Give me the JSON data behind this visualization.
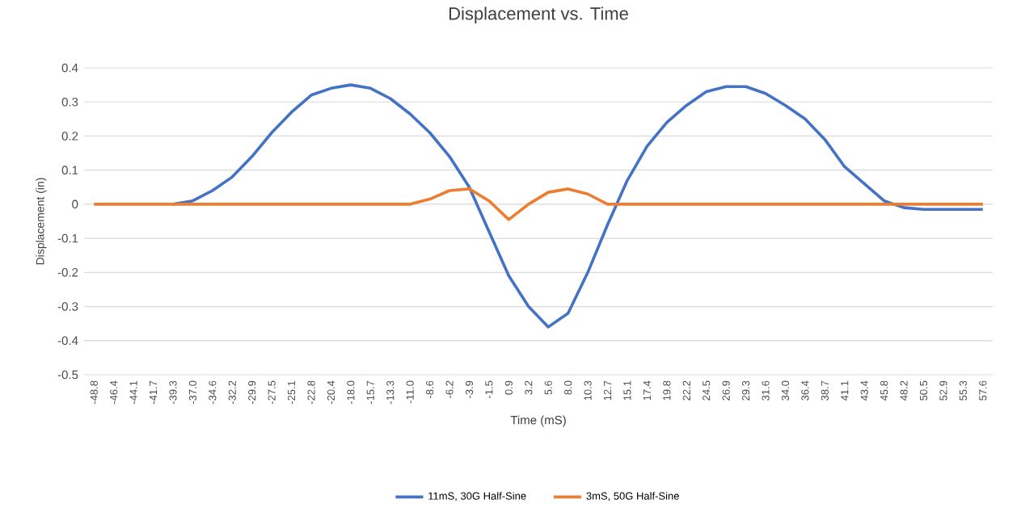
{
  "chart_data": {
    "type": "line",
    "title": "Displacement vs. Time",
    "xlabel": "Time (mS)",
    "ylabel": "Displacement (in)",
    "categories": [
      "-48.8",
      "-46.4",
      "-44.1",
      "-41.7",
      "-39.3",
      "-37.0",
      "-34.6",
      "-32.2",
      "-29.9",
      "-27.5",
      "-25.1",
      "-22.8",
      "-20.4",
      "-18.0",
      "-15.7",
      "-13.3",
      "-11.0",
      "-8.6",
      "-6.2",
      "-3.9",
      "-1.5",
      "0.9",
      "3.2",
      "5.6",
      "8.0",
      "10.3",
      "12.7",
      "15.1",
      "17.4",
      "19.8",
      "22.2",
      "24.5",
      "26.9",
      "29.3",
      "31.6",
      "34.0",
      "36.4",
      "38.7",
      "41.1",
      "43.4",
      "45.8",
      "48.2",
      "50.5",
      "52.9",
      "55.3",
      "57.6"
    ],
    "series": [
      {
        "name": "11mS, 30G Half-Sine",
        "color": "#4472c4",
        "values": [
          null,
          null,
          null,
          null,
          0.0,
          0.01,
          0.04,
          0.08,
          0.14,
          0.21,
          0.27,
          0.32,
          0.34,
          0.35,
          0.34,
          0.31,
          0.265,
          0.21,
          0.14,
          0.05,
          -0.08,
          -0.21,
          -0.3,
          -0.36,
          -0.32,
          -0.2,
          -0.06,
          0.07,
          0.17,
          0.24,
          0.29,
          0.33,
          0.345,
          0.345,
          0.325,
          0.29,
          0.25,
          0.19,
          0.11,
          0.06,
          0.01,
          -0.01,
          -0.015,
          -0.015,
          -0.015,
          -0.015
        ]
      },
      {
        "name": "3mS, 50G Half-Sine",
        "color": "#ed7d31",
        "values": [
          0,
          0,
          0,
          0,
          0,
          0,
          0,
          0,
          0,
          0,
          0,
          0,
          0,
          0,
          0,
          0,
          0,
          0.015,
          0.04,
          0.045,
          0.01,
          -0.045,
          0.0,
          0.035,
          0.045,
          0.03,
          0.0,
          0,
          0,
          0,
          0,
          0,
          0,
          0,
          0,
          0,
          0,
          0,
          0,
          0,
          0,
          0,
          0,
          0,
          0,
          0
        ]
      }
    ],
    "ylim": [
      -0.5,
      0.4
    ],
    "yticks": [
      -0.5,
      -0.4,
      -0.3,
      -0.2,
      -0.1,
      0,
      0.1,
      0.2,
      0.3,
      0.4
    ],
    "grid": "y",
    "legend": "bottom"
  }
}
